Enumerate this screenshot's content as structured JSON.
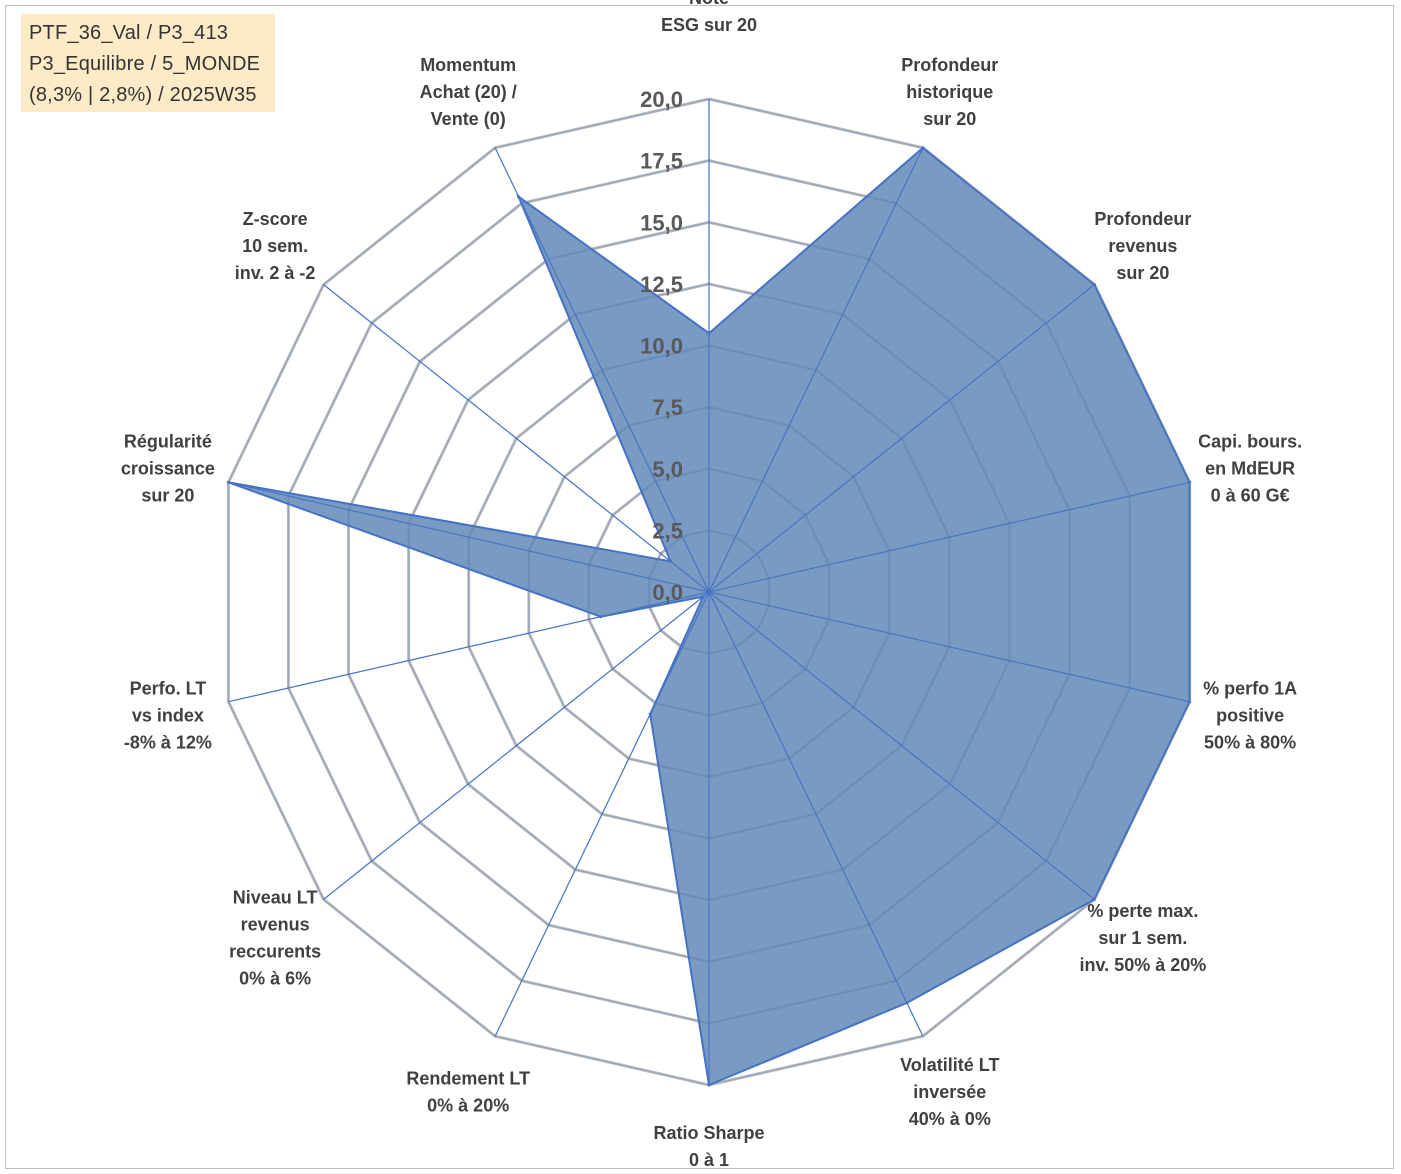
{
  "info_box": {
    "line1": "PTF_36_Val / P3_413",
    "line2": "P3_Equilibre / 5_MONDE",
    "line3": "(8,3% | 2,8%) / 2025W35"
  },
  "colors": {
    "fill": "#6a8fbc",
    "line": "#4472c4",
    "grid": "#bfbfbf",
    "info_bg": "#fdebc8"
  },
  "chart_data": {
    "type": "radar",
    "title": "",
    "r_range": [
      0,
      20
    ],
    "r_ticks": [
      "0,0",
      "2,5",
      "5,0",
      "7,5",
      "10,0",
      "12,5",
      "15,0",
      "17,5",
      "20,0"
    ],
    "categories": [
      [
        "Note",
        "ESG sur 20"
      ],
      [
        "Profondeur",
        "historique",
        "sur 20"
      ],
      [
        "Profondeur",
        "revenus",
        "sur 20"
      ],
      [
        "Capi. bours.",
        "en MdEUR",
        "0 à 60 G€"
      ],
      [
        "% perfo 1A",
        "positive",
        "50% à 80%"
      ],
      [
        "% perte max.",
        "sur 1 sem.",
        "inv. 50% à 20%"
      ],
      [
        "Volatilité LT",
        "inversée",
        "40% à 0%"
      ],
      [
        "Ratio Sharpe",
        "0 à 1"
      ],
      [
        "Rendement LT",
        "0% à 20%"
      ],
      [
        "Niveau LT",
        "revenus",
        "reccurents",
        "0% à 6%"
      ],
      [
        "Perfo. LT",
        "vs index",
        "-8% à 12%"
      ],
      [
        "Régularité",
        "croissance",
        "sur 20"
      ],
      [
        "Z-score",
        "10 sem.",
        "inv. 2 à -2"
      ],
      [
        "Momentum",
        "Achat (20) /",
        "Vente (0)"
      ]
    ],
    "series": [
      {
        "values": [
          10.5,
          20.0,
          20.0,
          20.0,
          20.0,
          20.0,
          18.5,
          20.0,
          5.5,
          0.3,
          4.5,
          20.0,
          2.0,
          17.8
        ]
      }
    ],
    "grid": true,
    "legend": "none"
  }
}
